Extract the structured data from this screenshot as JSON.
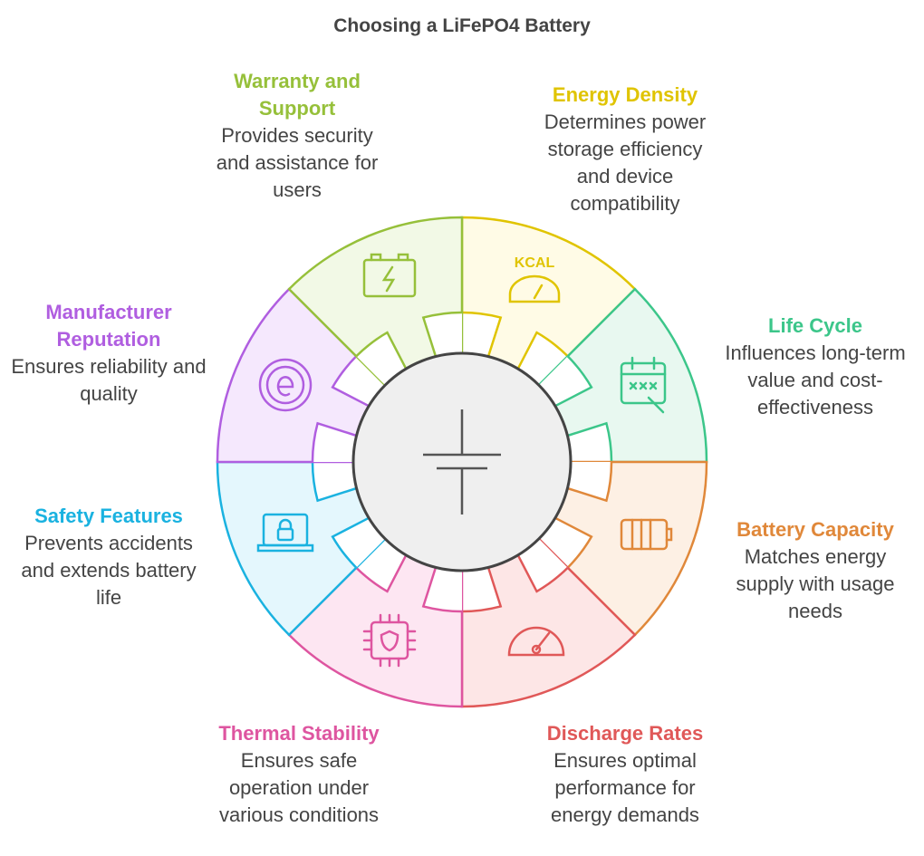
{
  "title": "Choosing a LiFePO4 Battery",
  "segments": [
    {
      "title": "Energy Density",
      "desc": "Determines power storage efficiency and device compatibility",
      "color": "#e0c400",
      "fill": "#fffbe6",
      "icon": "kcal-gauge-icon"
    },
    {
      "title": "Life Cycle",
      "desc": "Influences long-term value and cost-effectiveness",
      "color": "#3cc68a",
      "fill": "#e8f8f0",
      "icon": "calendar-icon"
    },
    {
      "title": "Battery Capacity",
      "desc": "Matches energy supply with usage needs",
      "color": "#e0883a",
      "fill": "#fdf0e4",
      "icon": "battery-icon"
    },
    {
      "title": "Discharge Rates",
      "desc": "Ensures optimal performance for energy demands",
      "color": "#e05858",
      "fill": "#fde6e6",
      "icon": "speedometer-icon"
    },
    {
      "title": "Thermal Stability",
      "desc": "Ensures safe operation under various conditions",
      "color": "#de55a0",
      "fill": "#fde6f2",
      "icon": "chip-shield-icon"
    },
    {
      "title": "Safety Features",
      "desc": "Prevents accidents and extends battery life",
      "color": "#1ab2e0",
      "fill": "#e4f7fd",
      "icon": "laptop-lock-icon"
    },
    {
      "title": "Manufacturer Reputation",
      "desc": "Ensures reliability and quality",
      "color": "#b05ee0",
      "fill": "#f5e8fd",
      "icon": "e-badge-icon"
    },
    {
      "title": "Warranty and Support",
      "desc": "Provides security and assistance for users",
      "color": "#96c03a",
      "fill": "#f2f9e6",
      "icon": "car-battery-icon"
    }
  ],
  "center_icon": "battery-symbol-icon"
}
